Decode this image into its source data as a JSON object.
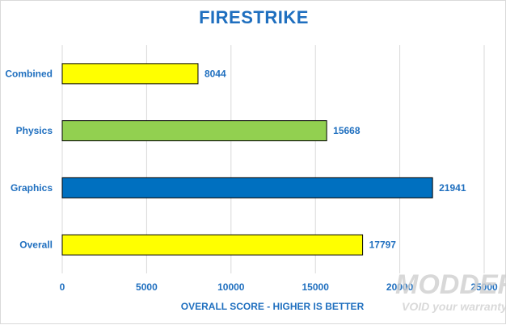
{
  "chart_data": {
    "type": "bar",
    "orientation": "horizontal",
    "title": "FIRESTRIKE",
    "xlabel": "OVERALL SCORE - HIGHER IS BETTER",
    "ylabel": "",
    "categories": [
      "Combined",
      "Physics",
      "Graphics",
      "Overall"
    ],
    "values": [
      8044,
      15668,
      21941,
      17797
    ],
    "bar_colors": [
      "#ffff00",
      "#92d050",
      "#0070c0",
      "#ffff00"
    ],
    "xlim": [
      0,
      25000
    ],
    "xticks": [
      0,
      5000,
      10000,
      15000,
      20000,
      25000
    ],
    "grid": true,
    "data_labels": true
  },
  "watermark": {
    "line1": "MODDERS",
    "line2": "VOID your warranty"
  }
}
